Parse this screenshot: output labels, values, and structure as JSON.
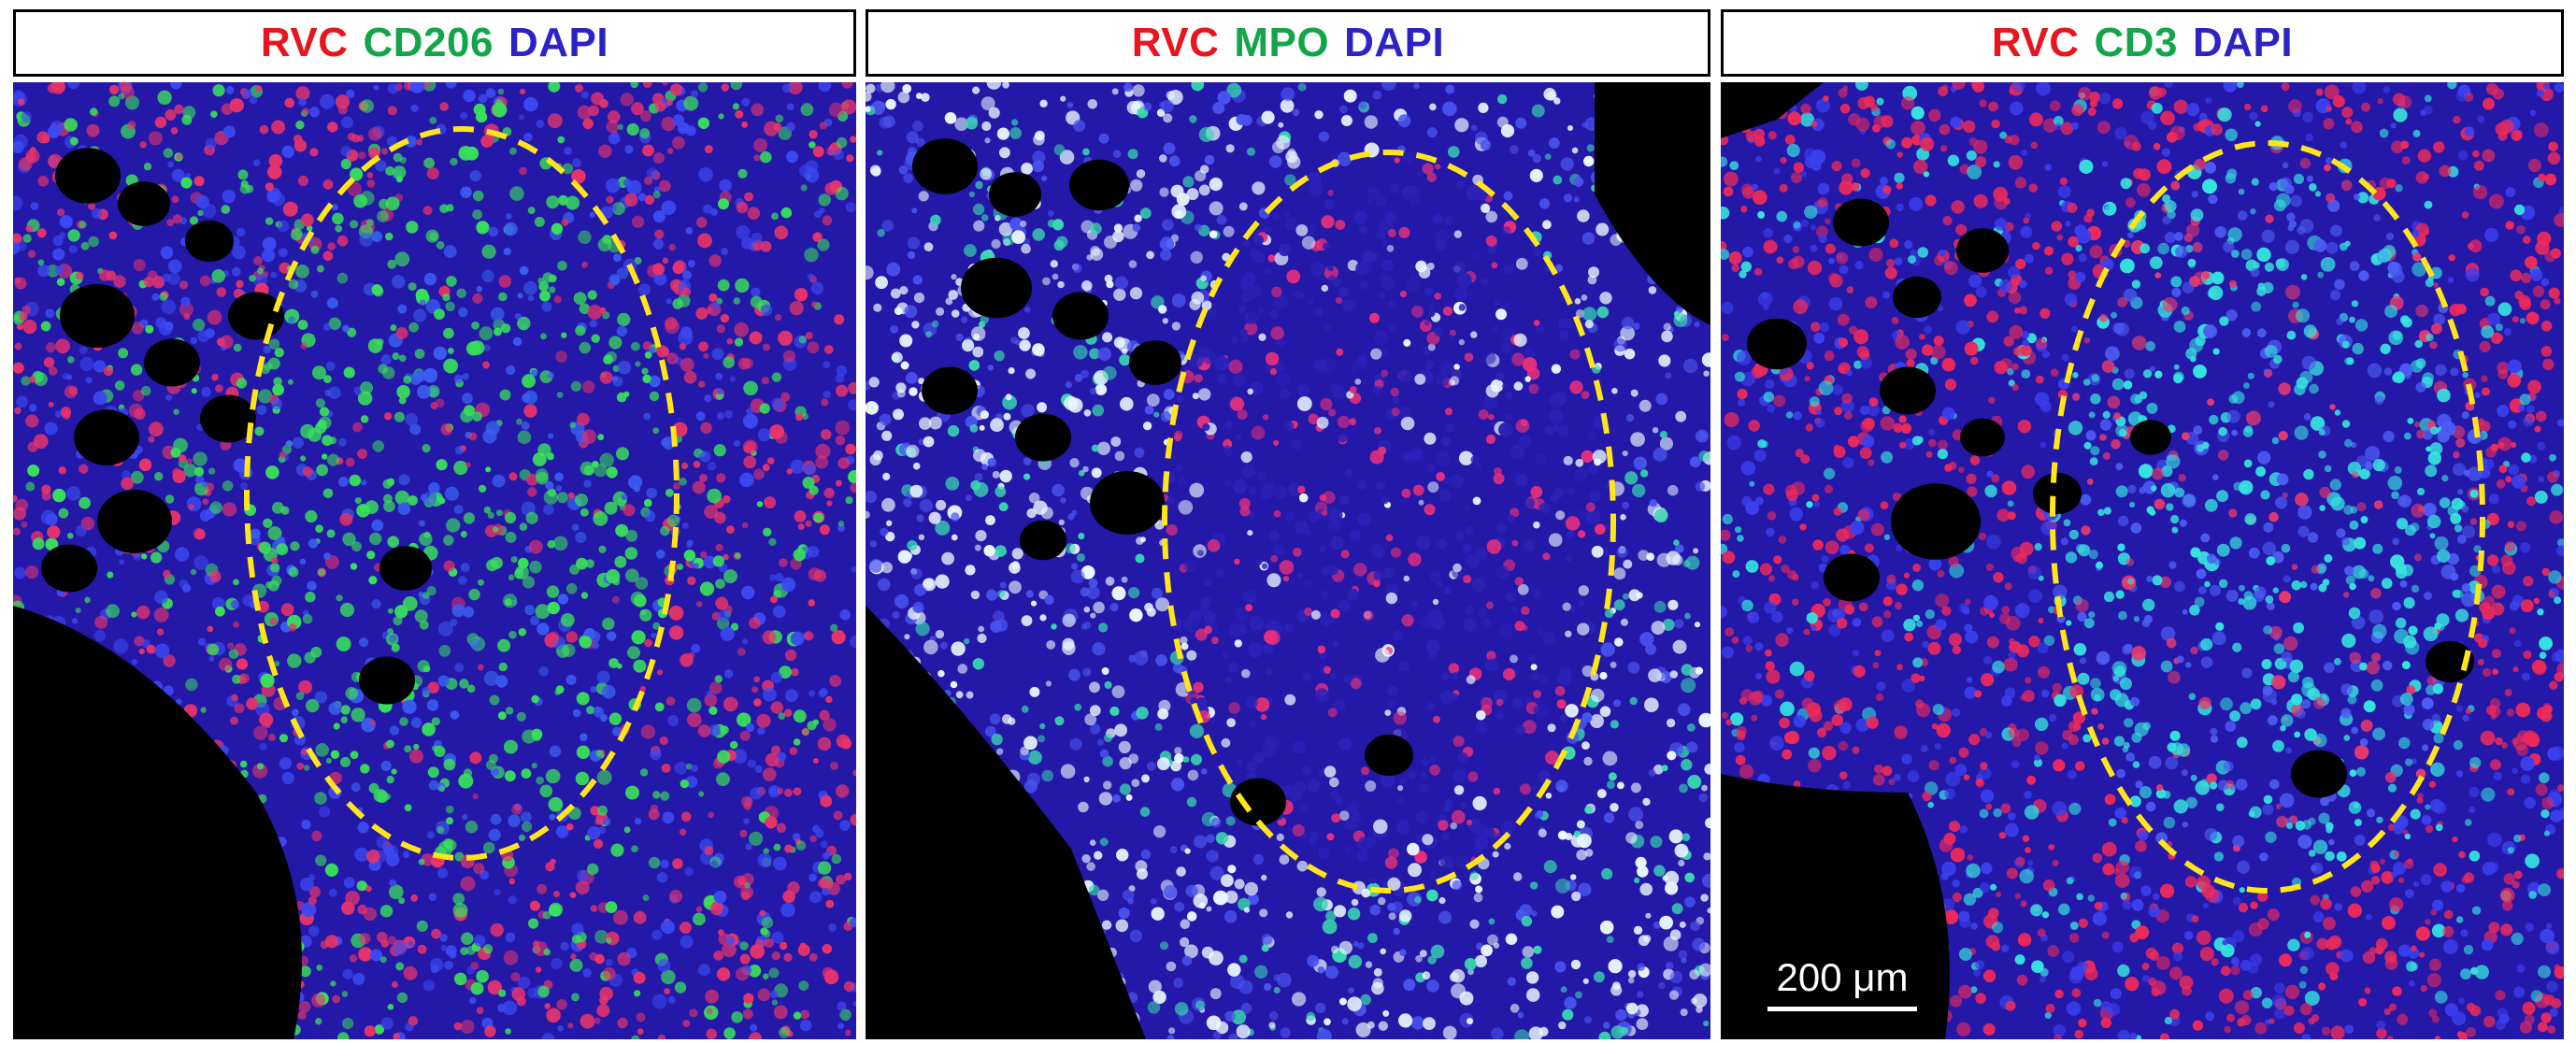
{
  "colors": {
    "red": "#e8141e",
    "green": "#13a54a",
    "blue": "#2b23c6",
    "roi": "#ffe51a"
  },
  "panels": [
    {
      "label_red": "RVC",
      "label_green": "CD206",
      "label_blue": "DAPI",
      "stain_color": "#38e05a"
    },
    {
      "label_red": "RVC",
      "label_green": "MPO",
      "label_blue": "DAPI",
      "stain_color": "#e9f7ff"
    },
    {
      "label_red": "RVC",
      "label_green": "CD3",
      "label_blue": "DAPI",
      "stain_color": "#36e2de"
    }
  ],
  "scale_bar": {
    "label": "200 μm"
  }
}
